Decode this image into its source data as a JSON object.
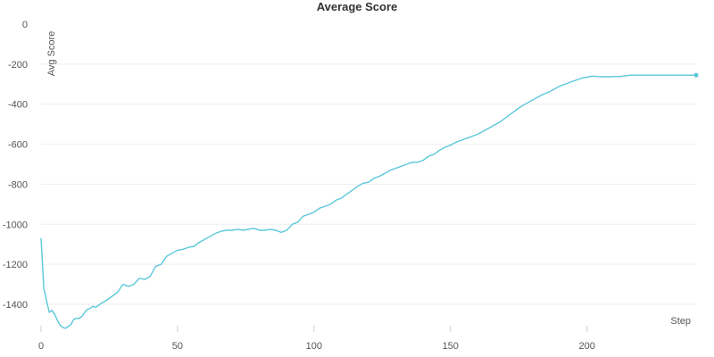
{
  "chart_data": {
    "type": "line",
    "title": "Average Score",
    "xlabel": "Step",
    "ylabel": "Avg Score",
    "xlim": [
      0,
      240
    ],
    "ylim": [
      -1500,
      0
    ],
    "x_ticks": [
      0,
      50,
      100,
      150,
      200
    ],
    "y_ticks": [
      0,
      -200,
      -400,
      -600,
      -800,
      -1000,
      -1200,
      -1400
    ],
    "grid": true,
    "legend": "none",
    "series": [
      {
        "color": "#5bc8da",
        "x": [
          0,
          1,
          2,
          3,
          4,
          5,
          6,
          7,
          8,
          9,
          10,
          11,
          12,
          13,
          14,
          15,
          16,
          17,
          18,
          19,
          20,
          22,
          24,
          26,
          28,
          30,
          32,
          34,
          36,
          38,
          40,
          42,
          44,
          46,
          48,
          50,
          52,
          54,
          56,
          58,
          60,
          62,
          64,
          66,
          68,
          70,
          72,
          74,
          76,
          78,
          80,
          82,
          84,
          86,
          88,
          90,
          92,
          94,
          96,
          98,
          100,
          102,
          104,
          106,
          108,
          110,
          112,
          114,
          116,
          118,
          120,
          122,
          124,
          126,
          128,
          130,
          132,
          134,
          136,
          138,
          140,
          142,
          144,
          146,
          148,
          150,
          152,
          154,
          156,
          158,
          160,
          162,
          164,
          166,
          168,
          170,
          172,
          174,
          176,
          178,
          180,
          182,
          184,
          186,
          188,
          190,
          192,
          194,
          196,
          198,
          200,
          202,
          204,
          206,
          208,
          210,
          212,
          214,
          216,
          218,
          220,
          222,
          224,
          226,
          228,
          230,
          232,
          234,
          236,
          238,
          240
        ],
        "y": [
          -1070,
          -1320,
          -1380,
          -1440,
          -1430,
          -1450,
          -1480,
          -1505,
          -1515,
          -1520,
          -1510,
          -1500,
          -1475,
          -1470,
          -1470,
          -1460,
          -1440,
          -1425,
          -1420,
          -1410,
          -1415,
          -1395,
          -1380,
          -1360,
          -1340,
          -1300,
          -1310,
          -1300,
          -1270,
          -1275,
          -1260,
          -1210,
          -1200,
          -1160,
          -1145,
          -1130,
          -1125,
          -1115,
          -1110,
          -1090,
          -1075,
          -1060,
          -1045,
          -1035,
          -1030,
          -1030,
          -1025,
          -1030,
          -1025,
          -1020,
          -1030,
          -1030,
          -1025,
          -1030,
          -1040,
          -1030,
          -1000,
          -990,
          -960,
          -950,
          -940,
          -920,
          -910,
          -900,
          -880,
          -870,
          -850,
          -830,
          -810,
          -795,
          -790,
          -770,
          -760,
          -745,
          -730,
          -720,
          -710,
          -700,
          -690,
          -690,
          -680,
          -660,
          -650,
          -630,
          -615,
          -605,
          -590,
          -580,
          -570,
          -560,
          -550,
          -535,
          -520,
          -505,
          -490,
          -470,
          -450,
          -430,
          -410,
          -395,
          -380,
          -365,
          -350,
          -340,
          -325,
          -310,
          -300,
          -290,
          -280,
          -270,
          -265,
          -260,
          -262,
          -263,
          -263,
          -262,
          -262,
          -258,
          -255,
          -255,
          -255,
          -255,
          -255,
          -255,
          -255,
          -255,
          -255,
          -255,
          -255,
          -255,
          -255
        ]
      }
    ]
  }
}
